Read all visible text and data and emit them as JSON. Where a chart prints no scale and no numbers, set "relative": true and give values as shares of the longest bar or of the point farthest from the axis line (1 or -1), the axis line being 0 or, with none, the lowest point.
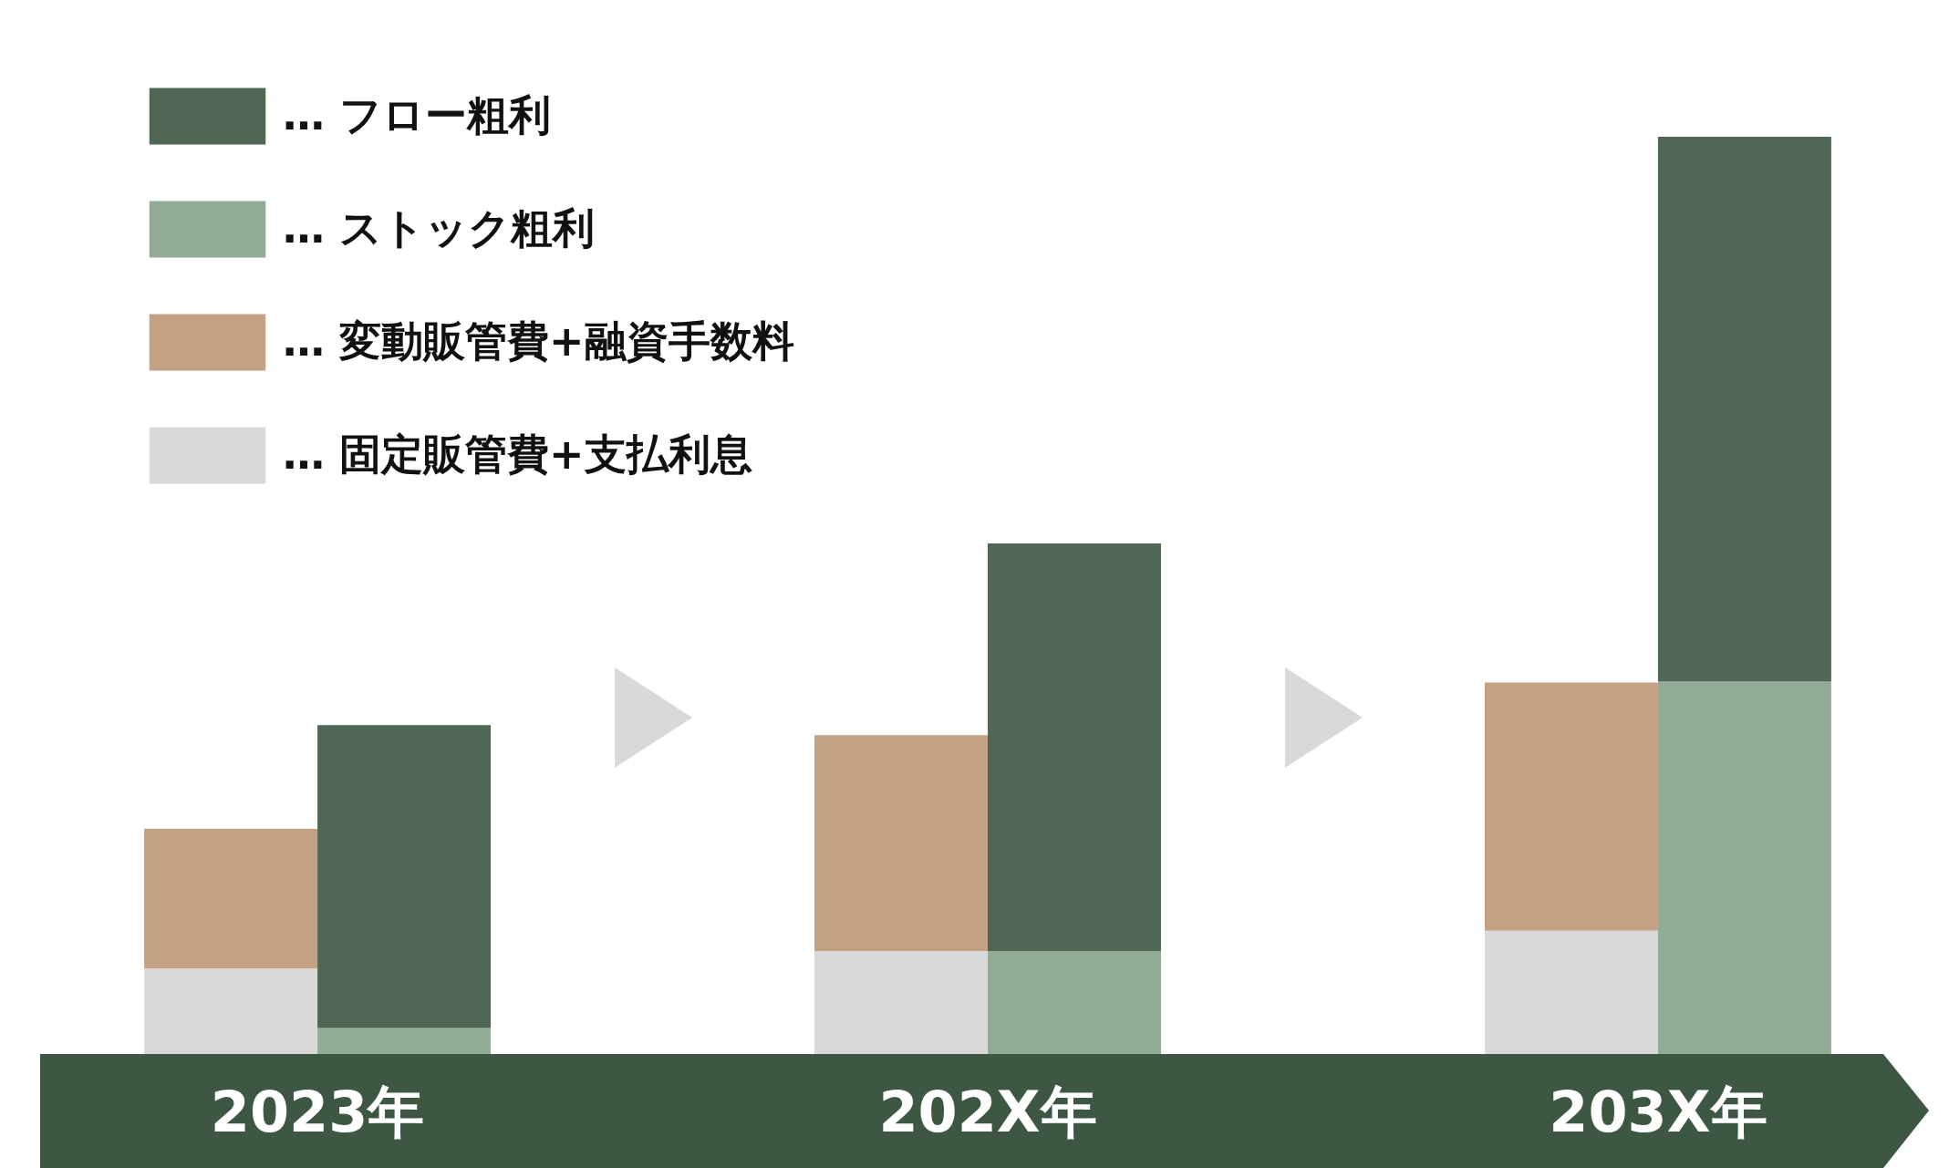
{
  "chart_data": {
    "type": "bar",
    "relative": true,
    "stacked": true,
    "legend": "top left",
    "categories": [
      null,
      null,
      null,
      null,
      null,
      null
    ],
    "series": [
      {
        "name": "… 固定販管費+支払利息",
        "color": "#d9d9d9",
        "values": [
          0.102,
          null,
          0.121,
          null,
          0.143,
          null
        ]
      },
      {
        "name": "… 変動販管費+融資手数料",
        "color": "#c4a183",
        "values": [
          0.151,
          null,
          0.233,
          null,
          0.268,
          null
        ]
      },
      {
        "name": "… ストック粗利",
        "color": "#92ab94",
        "values": [
          null,
          0.038,
          null,
          0.121,
          null,
          0.412
        ]
      },
      {
        "name": "… フロー粗利",
        "color": "#4f6754",
        "values": [
          null,
          0.327,
          null,
          0.44,
          null,
          0.588
        ]
      }
    ],
    "annotations": [
      "2023年",
      "202X年",
      "203X年"
    ]
  }
}
